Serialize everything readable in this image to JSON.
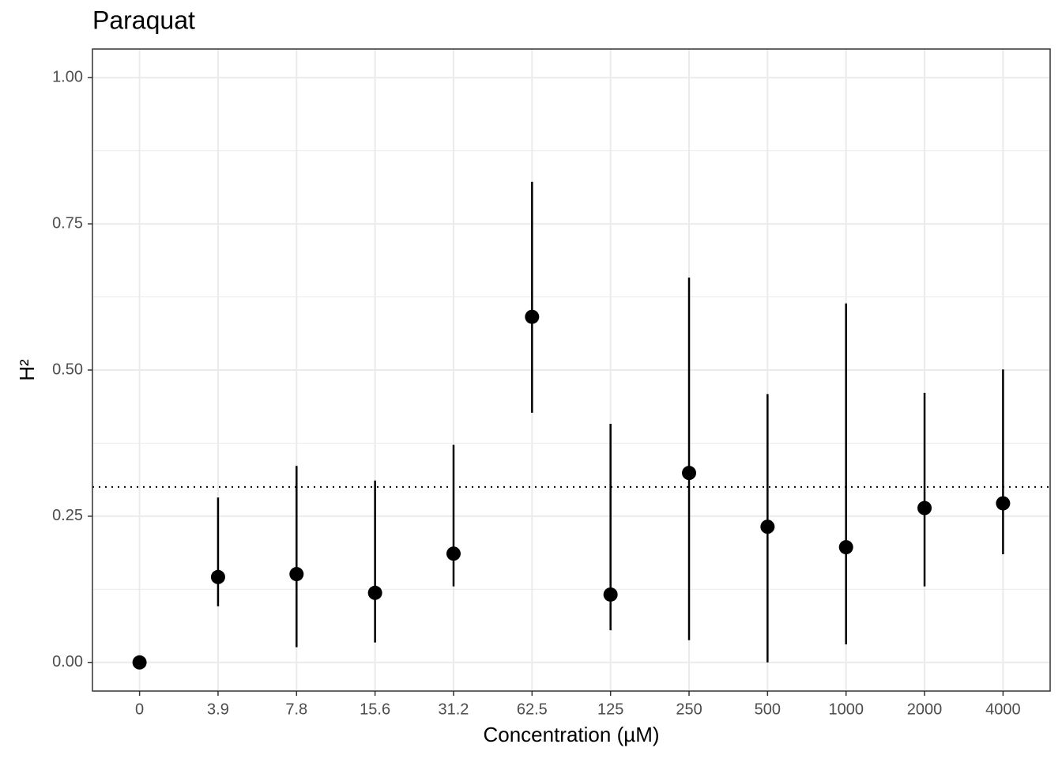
{
  "chart_data": {
    "type": "pointrange",
    "title": "Paraquat",
    "x_label": "Concentration (µM)",
    "y_label": "H²",
    "categories": [
      "0",
      "3.9",
      "7.8",
      "15.6",
      "31.2",
      "62.5",
      "125",
      "250",
      "500",
      "1000",
      "2000",
      "4000"
    ],
    "values": [
      0,
      0.146,
      0.151,
      0.119,
      0.186,
      0.591,
      0.116,
      0.324,
      0.232,
      0.197,
      0.264,
      0.272
    ],
    "lower": [
      0,
      0.096,
      0.026,
      0.034,
      0.13,
      0.427,
      0.055,
      0.038,
      0,
      0.031,
      0.13,
      0.185
    ],
    "upper": [
      0,
      0.282,
      0.336,
      0.311,
      0.372,
      0.822,
      0.408,
      0.658,
      0.459,
      0.614,
      0.461,
      0.501
    ],
    "color": "#000000",
    "hline": 0.3,
    "ylim": [
      -0.049,
      1.049
    ],
    "yticks": [
      {
        "value": 0,
        "label": "0.00"
      },
      {
        "value": 0.25,
        "label": "0.25"
      },
      {
        "value": 0.5,
        "label": "0.50"
      },
      {
        "value": 0.75,
        "label": "0.75"
      },
      {
        "value": 1,
        "label": "1.00"
      }
    ],
    "grid": true
  }
}
